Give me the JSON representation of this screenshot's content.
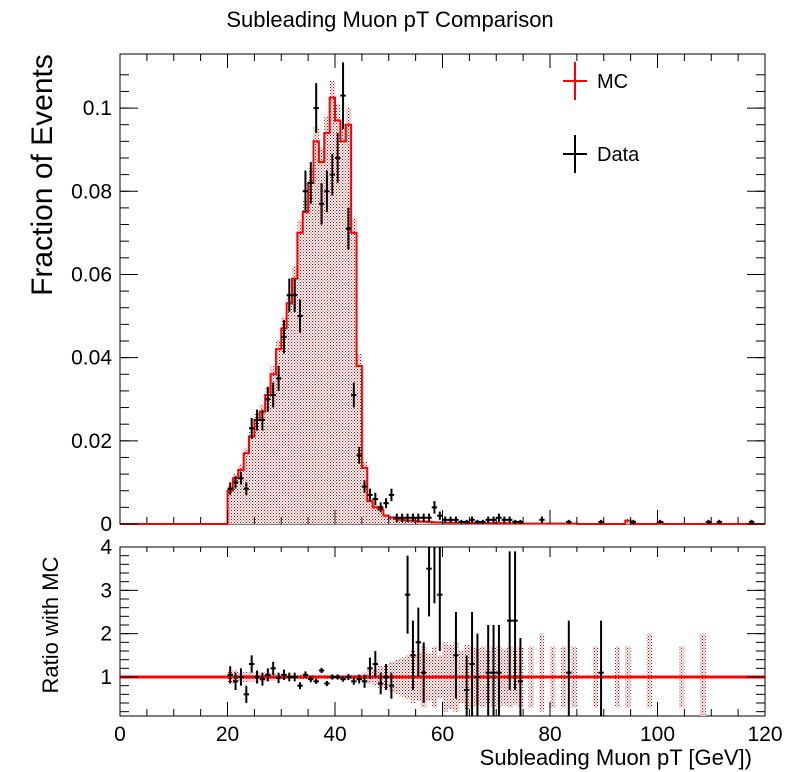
{
  "chart_data": [
    {
      "type": "histogram",
      "title": "Subleading Muon pT Comparison",
      "xlabel": "",
      "ylabel": "Fraction of Events",
      "xlim": [
        0,
        120
      ],
      "ylim": [
        0,
        0.113
      ],
      "x_ticks": [
        0,
        20,
        40,
        60,
        80,
        100,
        120
      ],
      "y_ticks": [
        "0",
        "0.02",
        "0.04",
        "0.06",
        "0.08",
        "0.1"
      ],
      "grid": false,
      "legend_position": "top-right",
      "legend": [
        "MC",
        "Data"
      ],
      "colors": {
        "mc": "#ff0000",
        "mc_band": "#cc0000",
        "data": "#000000"
      },
      "bin_width": 1,
      "mc": {
        "bin_low_edges": [
          20,
          21,
          22,
          23,
          24,
          25,
          26,
          27,
          28,
          29,
          30,
          31,
          32,
          33,
          34,
          35,
          36,
          37,
          38,
          39,
          40,
          41,
          42,
          43,
          44,
          45,
          46,
          47,
          48,
          49,
          50,
          51,
          52,
          53,
          54,
          55,
          56,
          57,
          58,
          59,
          60,
          61,
          62,
          63,
          64,
          65,
          66,
          67,
          68,
          69,
          70,
          71,
          72,
          73,
          74,
          75,
          76,
          77,
          78,
          79,
          80,
          81,
          82,
          83,
          84,
          85,
          86,
          87,
          88,
          89,
          90,
          91,
          92,
          93,
          94,
          95,
          96,
          97,
          98,
          99,
          100,
          101,
          102,
          103,
          104,
          105,
          106,
          107,
          108,
          109,
          110,
          111,
          112,
          113,
          114,
          115,
          116,
          117,
          118,
          119
        ],
        "values": [
          0.008,
          0.011,
          0.013,
          0.017,
          0.021,
          0.025,
          0.027,
          0.031,
          0.036,
          0.042,
          0.047,
          0.053,
          0.059,
          0.07,
          0.075,
          0.082,
          0.092,
          0.087,
          0.094,
          0.1025,
          0.097,
          0.092,
          0.096,
          0.07,
          0.038,
          0.0135,
          0.0055,
          0.004,
          0.0035,
          0.002,
          0.0015,
          0.0012,
          0.001,
          0.0008,
          0.0008,
          0.0006,
          0.0006,
          0.0005,
          0.0004,
          0.0004,
          0.0003,
          0.0003,
          0.0003,
          0.0003,
          0.0002,
          0.0002,
          0.0002,
          0.0002,
          0.0002,
          0.0002,
          0.0002,
          0.0002,
          0.0001,
          0.0001,
          0.0001,
          0.0001,
          0.0001,
          0.0001,
          0.0001,
          0.0001,
          0.0001,
          0.0001,
          0.0001,
          0.0001,
          0.0001,
          0,
          0,
          0,
          0,
          0,
          0,
          0,
          0,
          0,
          0.0008,
          0,
          0,
          0,
          0,
          0,
          0.0004,
          0,
          0,
          0,
          0,
          0,
          0,
          0,
          0,
          0,
          0,
          0,
          0,
          0,
          0,
          0,
          0,
          0,
          0,
          0
        ],
        "uncertainty_band": [
          0.001,
          0.001,
          0.0012,
          0.0012,
          0.0015,
          0.0015,
          0.0018,
          0.002,
          0.002,
          0.0022,
          0.0025,
          0.0025,
          0.003,
          0.003,
          0.0032,
          0.0035,
          0.0035,
          0.0035,
          0.004,
          0.004,
          0.004,
          0.004,
          0.004,
          0.0035,
          0.003,
          0.0015,
          0.0008,
          0.0006,
          0.0006,
          0.0004,
          0.0004,
          0.0004,
          0.0004,
          0.0003,
          0.0003,
          0.0003,
          0.0003,
          0.0003,
          0.0002,
          0.0002,
          0.0002,
          0.0002,
          0.0002,
          0.0002,
          0.0002,
          0.0002,
          0.0002,
          0.0002,
          0.0002,
          0.0002,
          0.0002,
          0.0002,
          0.0001,
          0.0001,
          0.0001,
          0.0001,
          0.0001,
          0.0001,
          0.0001,
          0.0001,
          0.0001,
          0.0001,
          0.0001,
          0.0001,
          0.0001,
          0,
          0,
          0,
          0,
          0,
          0,
          0,
          0,
          0,
          0.0004,
          0,
          0,
          0,
          0,
          0,
          0.0003,
          0,
          0,
          0,
          0,
          0,
          0,
          0,
          0,
          0,
          0,
          0,
          0,
          0,
          0,
          0,
          0,
          0,
          0,
          0
        ]
      },
      "data": {
        "x": [
          20.5,
          21.5,
          22.5,
          23.5,
          24.5,
          25.5,
          26.5,
          27.5,
          28.5,
          29.5,
          30.5,
          31.5,
          32.5,
          33.5,
          34.5,
          35.5,
          36.5,
          37.5,
          38.5,
          39.5,
          40.5,
          41.5,
          42.5,
          43.5,
          44.5,
          45.5,
          46.5,
          47.5,
          48.5,
          49.5,
          50.5,
          51.5,
          52.5,
          53.5,
          54.5,
          55.5,
          56.5,
          57.5,
          58.5,
          59.5,
          60.5,
          61.5,
          62.5,
          63.5,
          64.5,
          65.5,
          66.5,
          67.5,
          68.5,
          69.5,
          70.5,
          71.5,
          72.5,
          73.5,
          74.5,
          78.5,
          83.5,
          89.5,
          95.5,
          100.5,
          109.5,
          111.5,
          117.5
        ],
        "y": [
          0.0085,
          0.01,
          0.011,
          0.0085,
          0.023,
          0.025,
          0.025,
          0.03,
          0.031,
          0.035,
          0.045,
          0.055,
          0.055,
          0.05,
          0.08,
          0.082,
          0.1,
          0.077,
          0.08,
          0.084,
          0.088,
          0.103,
          0.071,
          0.031,
          0.0165,
          0.009,
          0.007,
          0.006,
          0.004,
          0.005,
          0.007,
          0.0015,
          0.0015,
          0.0015,
          0.0015,
          0.0015,
          0.0015,
          0.0015,
          0.004,
          0.002,
          0.001,
          0.001,
          0.001,
          0.0005,
          0.0005,
          0.001,
          0.0005,
          0.0005,
          0.001,
          0.001,
          0.0015,
          0.001,
          0.001,
          0.0005,
          0.0005,
          0.001,
          0.0005,
          0.0005,
          0.0005,
          0.0005,
          0.0005,
          0.0005,
          0.0005
        ],
        "yerr": [
          0.0015,
          0.0015,
          0.0015,
          0.0015,
          0.0025,
          0.0025,
          0.0025,
          0.003,
          0.003,
          0.003,
          0.004,
          0.004,
          0.004,
          0.004,
          0.005,
          0.005,
          0.006,
          0.005,
          0.005,
          0.005,
          0.006,
          0.008,
          0.005,
          0.003,
          0.002,
          0.0015,
          0.0015,
          0.0015,
          0.0012,
          0.0012,
          0.0015,
          0.001,
          0.001,
          0.001,
          0.001,
          0.001,
          0.001,
          0.001,
          0.0015,
          0.001,
          0.0008,
          0.0008,
          0.0008,
          0.0005,
          0.0005,
          0.0008,
          0.0005,
          0.0005,
          0.0008,
          0.0008,
          0.001,
          0.0008,
          0.0008,
          0.0005,
          0.0005,
          0.0008,
          0.0005,
          0.0005,
          0.0005,
          0.0005,
          0.0005,
          0.0005,
          0.0005
        ]
      }
    },
    {
      "type": "ratio",
      "title": "",
      "xlabel": "Subleading Muon pT [GeV])",
      "ylabel": "Ratio with MC",
      "xlim": [
        0,
        120
      ],
      "ylim": [
        0.1,
        4
      ],
      "x_ticks": [
        0,
        20,
        40,
        60,
        80,
        100,
        120
      ],
      "y_ticks": [
        1,
        2,
        3,
        4
      ],
      "reference_line": 1,
      "colors": {
        "line": "#ff0000",
        "band": "#cc0000",
        "data": "#000000"
      },
      "band": {
        "x": [
          20.5,
          21.5,
          22.5,
          23.5,
          24.5,
          25.5,
          26.5,
          27.5,
          28.5,
          29.5,
          30.5,
          31.5,
          32.5,
          33.5,
          34.5,
          35.5,
          36.5,
          37.5,
          38.5,
          39.5,
          40.5,
          41.5,
          42.5,
          43.5,
          44.5,
          45.5,
          46.5,
          47.5,
          48.5,
          49.5,
          50.5,
          51.5,
          52.5,
          53.5,
          54.5,
          55.5,
          56.5,
          57.5,
          58.5,
          59.5,
          60.5,
          61.5,
          62.5,
          63.5,
          64.5,
          65.5,
          66.5,
          67.5,
          68.5,
          69.5,
          70.5,
          71.5,
          72.5,
          73.5,
          74.5,
          76.5,
          78.5,
          80.5,
          82.5,
          84.5,
          88.5,
          92.5,
          94.5,
          98.5,
          104.5,
          108.5
        ],
        "low": [
          0.85,
          0.85,
          0.88,
          0.88,
          0.9,
          0.9,
          0.9,
          0.92,
          0.92,
          0.93,
          0.93,
          0.94,
          0.95,
          0.95,
          0.95,
          0.95,
          0.96,
          0.96,
          0.96,
          0.96,
          0.96,
          0.96,
          0.96,
          0.95,
          0.93,
          0.9,
          0.85,
          0.8,
          0.75,
          0.7,
          0.65,
          0.6,
          0.55,
          0.5,
          0.4,
          0.45,
          0.3,
          0.45,
          0.3,
          0.5,
          0.2,
          0.25,
          0.2,
          0.4,
          0.25,
          0.3,
          0.35,
          0.3,
          0.4,
          0.3,
          0.3,
          0.35,
          0.3,
          0.35,
          0.3,
          0.3,
          0.2,
          0.3,
          0.3,
          0.3,
          0.3,
          0.3,
          0.3,
          0.3,
          0.3,
          0.1
        ],
        "high": [
          1.15,
          1.15,
          1.12,
          1.12,
          1.1,
          1.1,
          1.1,
          1.08,
          1.08,
          1.07,
          1.07,
          1.06,
          1.05,
          1.05,
          1.05,
          1.05,
          1.04,
          1.04,
          1.04,
          1.04,
          1.04,
          1.04,
          1.04,
          1.05,
          1.07,
          1.1,
          1.15,
          1.2,
          1.25,
          1.3,
          1.35,
          1.4,
          1.45,
          1.5,
          1.6,
          1.55,
          1.7,
          1.55,
          1.7,
          1.5,
          1.8,
          1.75,
          1.8,
          1.6,
          1.75,
          1.7,
          1.65,
          1.7,
          1.6,
          1.7,
          1.7,
          1.65,
          1.7,
          1.65,
          1.7,
          1.7,
          2.0,
          1.7,
          1.7,
          1.7,
          1.7,
          1.7,
          1.7,
          2.0,
          1.7,
          2.0
        ]
      },
      "data": {
        "x": [
          20.5,
          21.5,
          22.5,
          23.5,
          24.5,
          25.5,
          26.5,
          27.5,
          28.5,
          29.5,
          30.5,
          31.5,
          32.5,
          33.5,
          34.5,
          35.5,
          36.5,
          37.5,
          38.5,
          39.5,
          40.5,
          41.5,
          42.5,
          43.5,
          44.5,
          45.5,
          46.5,
          47.5,
          48.5,
          49.5,
          50.5,
          53.5,
          54.5,
          55.5,
          56.5,
          57.5,
          58.5,
          59.5,
          62.5,
          64.5,
          65.5,
          66.5,
          68.5,
          69.5,
          70.5,
          72.5,
          73.5,
          74.5,
          83.5,
          89.5
        ],
        "y": [
          1.05,
          0.9,
          1.0,
          0.6,
          1.3,
          1.0,
          0.95,
          1.05,
          1.2,
          0.98,
          1.05,
          1.0,
          1.0,
          0.8,
          1.05,
          0.95,
          0.9,
          1.15,
          0.85,
          1.0,
          1.0,
          0.95,
          1.0,
          0.9,
          0.95,
          0.9,
          1.2,
          1.3,
          0.85,
          1.0,
          0.8,
          2.9,
          1.5,
          1.8,
          1.1,
          3.5,
          4.2,
          2.9,
          1.5,
          0.7,
          1.3,
          1.0,
          1.1,
          1.1,
          1.1,
          2.3,
          2.3,
          0.9,
          1.1,
          1.1
        ],
        "yerr": [
          0.2,
          0.2,
          0.2,
          0.2,
          0.2,
          0.15,
          0.15,
          0.15,
          0.15,
          0.12,
          0.12,
          0.1,
          0.1,
          0.08,
          0.08,
          0.07,
          0.06,
          0.06,
          0.06,
          0.06,
          0.06,
          0.06,
          0.07,
          0.08,
          0.1,
          0.15,
          0.25,
          0.3,
          0.25,
          0.3,
          0.3,
          0.9,
          0.8,
          0.8,
          0.7,
          1.1,
          1.5,
          1.3,
          1.0,
          0.8,
          1.2,
          1.0,
          1.1,
          1.1,
          1.1,
          1.6,
          1.6,
          1.0,
          1.2,
          1.2
        ]
      }
    }
  ]
}
